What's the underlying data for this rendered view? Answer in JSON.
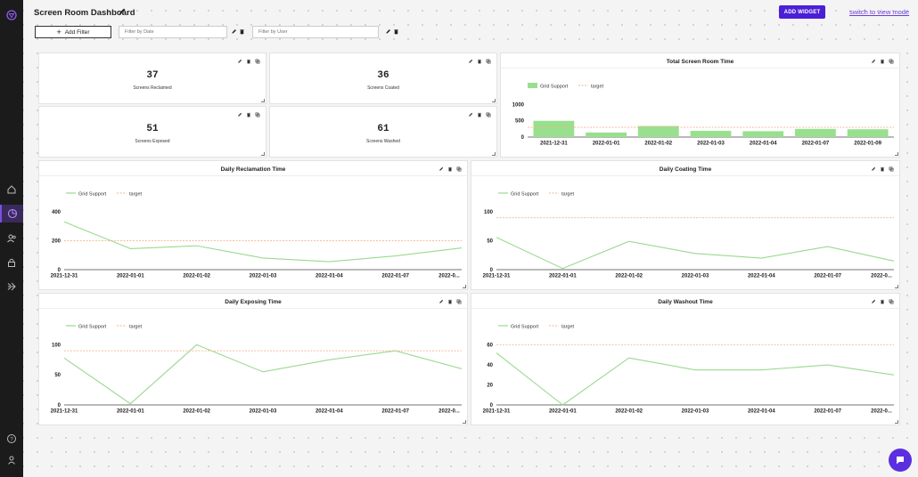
{
  "header": {
    "title": "Screen Room Dashboard",
    "add_widget_label": "ADD WIDGET",
    "switch_mode_label": "switch to view mode"
  },
  "filters": {
    "add_filter_label": "Add Filter",
    "date_placeholder": "Filter by Date",
    "user_placeholder": "Filter by User"
  },
  "stats": [
    {
      "value": "37",
      "label": "Screens Reclaimed"
    },
    {
      "value": "36",
      "label": "Screens Coated"
    },
    {
      "value": "51",
      "label": "Screens Exposed"
    },
    {
      "value": "61",
      "label": "Screens Washed"
    }
  ],
  "colors": {
    "accent": "#4b1fd6",
    "bar_fill": "#98e08e",
    "line_stroke": "#9ad98f",
    "target_line": "#f6b38a",
    "sidebar_bg": "#1b1b1b"
  },
  "sidebar_icons": [
    "logo-icon",
    "home-icon",
    "dashboard-icon",
    "users-icon",
    "lock-icon",
    "share-icon",
    "help-icon",
    "user-icon"
  ],
  "chart_data": [
    {
      "type": "bar",
      "title": "Total Screen Room Time",
      "categories": [
        "2021-12-31",
        "2022-01-01",
        "2022-01-02",
        "2022-01-03",
        "2022-01-04",
        "2022-01-07",
        "2022-01-09"
      ],
      "series": [
        {
          "name": "Grid Support",
          "values": [
            500,
            140,
            340,
            190,
            180,
            250,
            240
          ]
        }
      ],
      "target": {
        "name": "target",
        "value": 300
      },
      "yticks": [
        0,
        500,
        1000
      ],
      "ylim": [
        0,
        1150
      ],
      "legend": "top-left"
    },
    {
      "type": "line",
      "title": "Daily Reclamation Time",
      "categories": [
        "2021-12-31",
        "2022-01-01",
        "2022-01-02",
        "2022-01-03",
        "2022-01-04",
        "2022-01-07",
        "2022-0..."
      ],
      "series": [
        {
          "name": "Grid Support",
          "values": [
            330,
            145,
            165,
            80,
            55,
            95,
            150
          ]
        }
      ],
      "target": {
        "name": "target",
        "value": 200
      },
      "yticks": [
        0,
        200,
        400
      ],
      "ylim": [
        0,
        430
      ],
      "legend": "top-left"
    },
    {
      "type": "line",
      "title": "Daily Coating Time",
      "categories": [
        "2021-12-31",
        "2022-01-01",
        "2022-01-02",
        "2022-01-03",
        "2022-01-04",
        "2022-01-07",
        "2022-0..."
      ],
      "series": [
        {
          "name": "Grid Support",
          "values": [
            56,
            2,
            49,
            28,
            20,
            40,
            15
          ]
        }
      ],
      "target": {
        "name": "target",
        "value": 90
      },
      "yticks": [
        0,
        50,
        100
      ],
      "ylim": [
        0,
        108
      ],
      "legend": "top-left"
    },
    {
      "type": "line",
      "title": "Daily Exposing Time",
      "categories": [
        "2021-12-31",
        "2022-01-01",
        "2022-01-02",
        "2022-01-03",
        "2022-01-04",
        "2022-01-07",
        "2022-0..."
      ],
      "series": [
        {
          "name": "Grid Support",
          "values": [
            78,
            2,
            100,
            55,
            75,
            90,
            60
          ]
        }
      ],
      "target": {
        "name": "target",
        "value": 90
      },
      "yticks": [
        0,
        50,
        100
      ],
      "ylim": [
        0,
        108
      ],
      "legend": "top-left"
    },
    {
      "type": "line",
      "title": "Daily Washout Time",
      "categories": [
        "2021-12-31",
        "2022-01-01",
        "2022-01-02",
        "2022-01-03",
        "2022-01-04",
        "2022-01-07",
        "2022-0..."
      ],
      "series": [
        {
          "name": "Grid Support",
          "values": [
            52,
            0,
            47,
            35,
            35,
            40,
            30
          ]
        }
      ],
      "target": {
        "name": "target",
        "value": 60
      },
      "yticks": [
        0,
        20,
        40,
        60
      ],
      "ylim": [
        0,
        65
      ],
      "legend": "top-left"
    }
  ]
}
